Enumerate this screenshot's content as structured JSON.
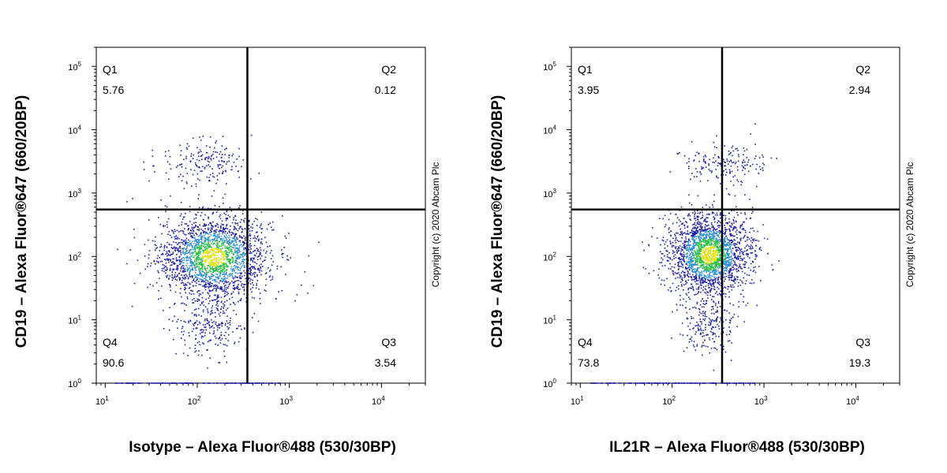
{
  "chart_data": [
    {
      "type": "scatter",
      "subtype": "flow-cytometry-density-dot-plot",
      "x_scale": "log",
      "y_scale": "log",
      "xlabel": "Isotype – Alexa Fluor®488 (530/30BP)",
      "ylabel": "CD19 – Alexa Fluor®647 (660/20BP)",
      "x_ticks": [
        "10",
        "10",
        "10",
        "10"
      ],
      "x_tick_exponents": [
        "1",
        "2",
        "3",
        "4"
      ],
      "y_ticks": [
        "10",
        "10",
        "10",
        "10",
        "10",
        "10"
      ],
      "y_tick_exponents": [
        "0",
        "1",
        "2",
        "3",
        "4",
        "5"
      ],
      "xlim": [
        8,
        30000
      ],
      "ylim": [
        1,
        200000
      ],
      "quadrant_gate": {
        "x": 350,
        "y": 550
      },
      "quadrants": [
        {
          "name": "Q1",
          "value": "5.76",
          "position": "top-left"
        },
        {
          "name": "Q2",
          "value": "0.12",
          "position": "top-right"
        },
        {
          "name": "Q3",
          "value": "3.54",
          "position": "bottom-right"
        },
        {
          "name": "Q4",
          "value": "90.6",
          "position": "bottom-left"
        }
      ],
      "populations": [
        {
          "center": [
            150,
            100
          ],
          "spread": [
            0.3,
            0.33
          ],
          "share": 0.84
        },
        {
          "center": [
            120,
            3000
          ],
          "spread": [
            0.25,
            0.18
          ],
          "share": 0.07
        },
        {
          "center": [
            130,
            8
          ],
          "spread": [
            0.2,
            0.25
          ],
          "share": 0.09
        }
      ],
      "copyright": "Copyright (c) 2020 Abcam Plc"
    },
    {
      "type": "scatter",
      "subtype": "flow-cytometry-density-dot-plot",
      "x_scale": "log",
      "y_scale": "log",
      "xlabel": "IL21R – Alexa Fluor®488 (530/30BP)",
      "ylabel": "CD19 – Alexa Fluor®647 (660/20BP)",
      "x_ticks": [
        "10",
        "10",
        "10",
        "10"
      ],
      "x_tick_exponents": [
        "1",
        "2",
        "3",
        "4"
      ],
      "y_ticks": [
        "10",
        "10",
        "10",
        "10",
        "10",
        "10"
      ],
      "y_tick_exponents": [
        "0",
        "1",
        "2",
        "3",
        "4",
        "5"
      ],
      "xlim": [
        8,
        30000
      ],
      "ylim": [
        1,
        200000
      ],
      "quadrant_gate": {
        "x": 350,
        "y": 550
      },
      "quadrants": [
        {
          "name": "Q1",
          "value": "3.95",
          "position": "top-left"
        },
        {
          "name": "Q2",
          "value": "2.94",
          "position": "top-right"
        },
        {
          "name": "Q3",
          "value": "19.3",
          "position": "bottom-right"
        },
        {
          "name": "Q4",
          "value": "73.8",
          "position": "bottom-left"
        }
      ],
      "populations": [
        {
          "center": [
            250,
            110
          ],
          "spread": [
            0.22,
            0.32
          ],
          "share": 0.85
        },
        {
          "center": [
            350,
            3000
          ],
          "spread": [
            0.22,
            0.18
          ],
          "share": 0.07
        },
        {
          "center": [
            250,
            8
          ],
          "spread": [
            0.15,
            0.25
          ],
          "share": 0.08
        }
      ],
      "copyright": "Copyright (c) 2020 Abcam Plc"
    }
  ],
  "colors": {
    "density_low": "#1f1fa8",
    "density_mid": "#2e8fd0",
    "density_high": "#2fbf4a",
    "density_peak": "#e0e020",
    "axis": "#000000",
    "gate": "#000000"
  }
}
